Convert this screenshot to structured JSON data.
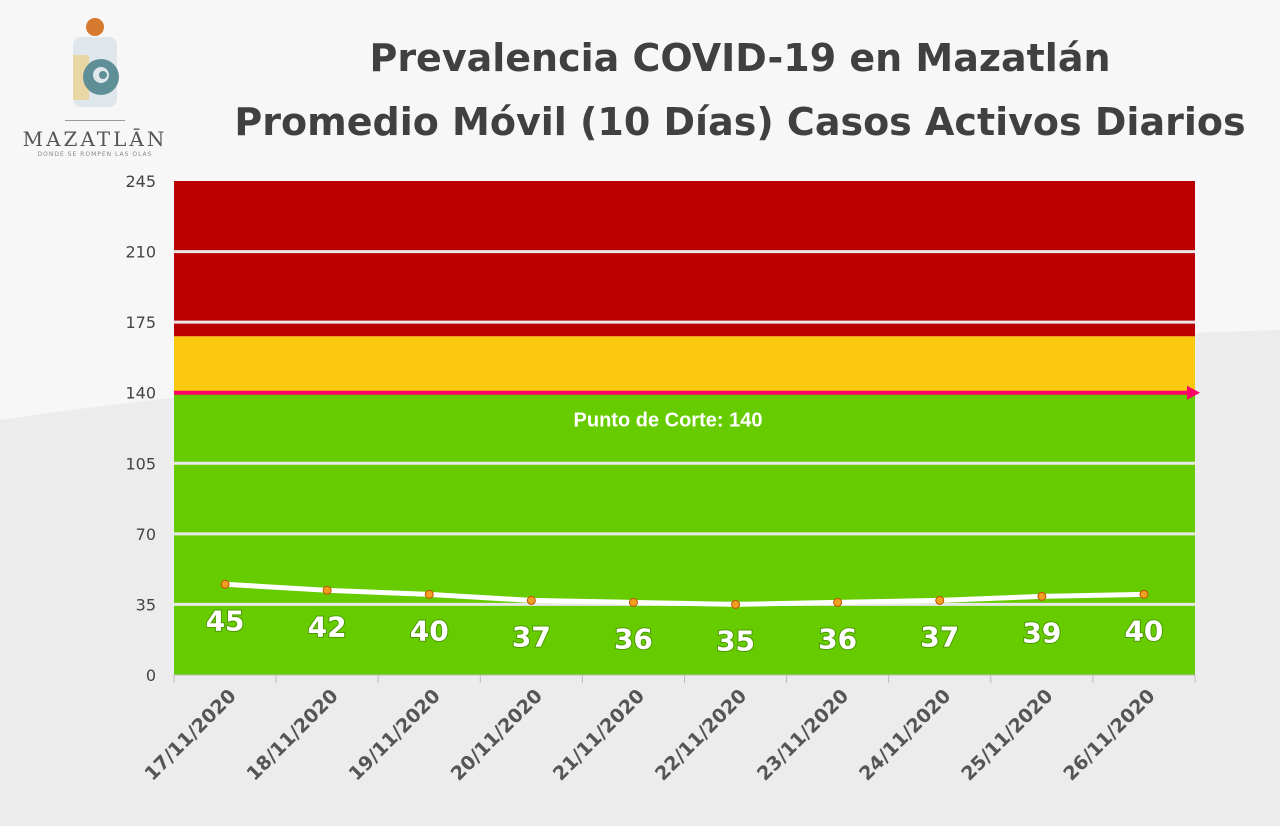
{
  "logo": {
    "word": "MAZATLĀN",
    "tagline": "DONDE SE ROMPEN LAS OLAS"
  },
  "chart_data": {
    "type": "line",
    "title": "Prevalencia COVID-19 en Mazatlán",
    "subtitle": "Promedio Móvil (10 Días) Casos Activos Diarios",
    "categories": [
      "17/11/2020",
      "18/11/2020",
      "19/11/2020",
      "20/11/2020",
      "21/11/2020",
      "22/11/2020",
      "23/11/2020",
      "24/11/2020",
      "25/11/2020",
      "26/11/2020"
    ],
    "values": [
      45,
      42,
      40,
      37,
      36,
      35,
      36,
      37,
      39,
      40
    ],
    "ylim": [
      0,
      245
    ],
    "yticks": [
      0,
      35,
      70,
      105,
      140,
      175,
      210,
      245
    ],
    "grid": true,
    "bands": [
      {
        "from": 0,
        "to": 140,
        "color": "#66cc00"
      },
      {
        "from": 140,
        "to": 168,
        "color": "#fcc810"
      },
      {
        "from": 168,
        "to": 245,
        "color": "#bb0000"
      }
    ],
    "threshold": {
      "value": 140,
      "label": "Punto de Corte: 140",
      "color": "#ff0066"
    },
    "line_color": "#ffffff",
    "marker_color": "#f0a020"
  }
}
